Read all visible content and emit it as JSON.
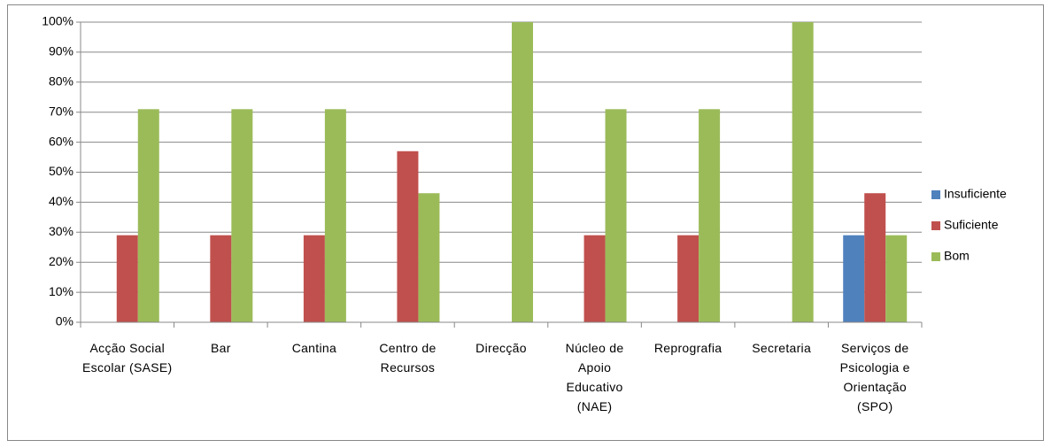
{
  "chart_data": {
    "type": "bar",
    "categories": [
      "Acção Social Escolar (SASE)",
      "Bar",
      "Cantina",
      "Centro de Recursos",
      "Direcção",
      "Núcleo de Apoio Educativo (NAE)",
      "Reprografia",
      "Secretaria",
      "Serviços de Psicologia e Orientação (SPO)"
    ],
    "series": [
      {
        "name": "Insuficiente",
        "color": "#4f81bd",
        "values": [
          0,
          0,
          0,
          0,
          0,
          0,
          0,
          0,
          29
        ]
      },
      {
        "name": "Suficiente",
        "color": "#c0504d",
        "values": [
          29,
          29,
          29,
          57,
          0,
          29,
          29,
          0,
          43
        ]
      },
      {
        "name": "Bom",
        "color": "#9bbb59",
        "values": [
          71,
          71,
          71,
          43,
          100,
          71,
          71,
          100,
          29
        ]
      }
    ],
    "ylim": [
      0,
      100
    ],
    "yticks": [
      {
        "value": 0,
        "label": "0%"
      },
      {
        "value": 10,
        "label": "10%"
      },
      {
        "value": 20,
        "label": "20%"
      },
      {
        "value": 30,
        "label": "30%"
      },
      {
        "value": 40,
        "label": "40%"
      },
      {
        "value": 50,
        "label": "50%"
      },
      {
        "value": 60,
        "label": "60%"
      },
      {
        "value": 70,
        "label": "70%"
      },
      {
        "value": 80,
        "label": "80%"
      },
      {
        "value": 90,
        "label": "90%"
      },
      {
        "value": 100,
        "label": "100%"
      }
    ],
    "grid": true,
    "legend": "right"
  }
}
